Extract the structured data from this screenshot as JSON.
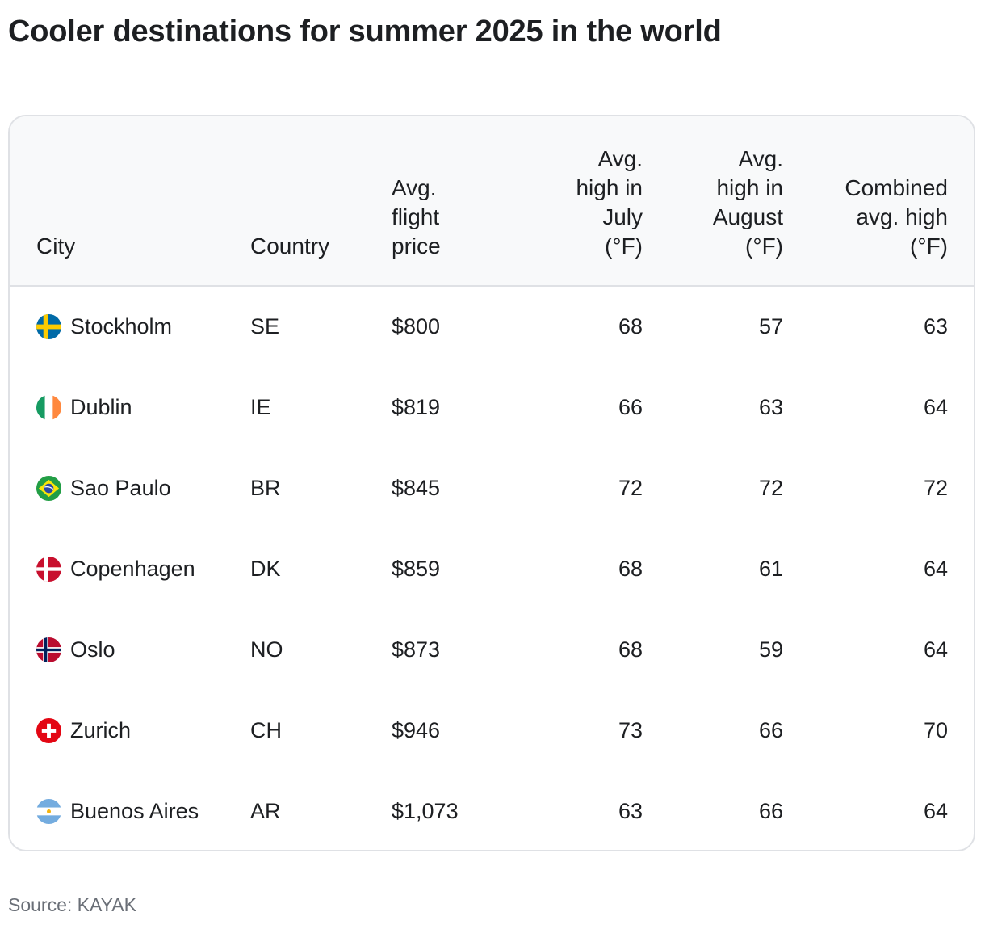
{
  "title": "Cooler destinations for summer 2025 in the world",
  "table": {
    "headers": {
      "city": "City",
      "country": "Country",
      "price_line1": "Avg.",
      "price_line2": "flight",
      "price_line3": "price",
      "july_line1": "Avg.",
      "july_line2": "high in",
      "july_line3": "July",
      "july_line4": "(°F)",
      "aug_line1": "Avg.",
      "aug_line2": "high in",
      "aug_line3": "August",
      "aug_line4": "(°F)",
      "comb_line1": "Combined",
      "comb_line2": "avg. high",
      "comb_line3": "(°F)"
    },
    "rows": [
      {
        "city": "Stockholm",
        "country": "SE",
        "price": "$800",
        "july": "68",
        "august": "57",
        "combined": "63",
        "flag_icon": "sweden-flag-icon"
      },
      {
        "city": "Dublin",
        "country": "IE",
        "price": "$819",
        "july": "66",
        "august": "63",
        "combined": "64",
        "flag_icon": "ireland-flag-icon"
      },
      {
        "city": "Sao Paulo",
        "country": "BR",
        "price": "$845",
        "july": "72",
        "august": "72",
        "combined": "72",
        "flag_icon": "brazil-flag-icon"
      },
      {
        "city": "Copenhagen",
        "country": "DK",
        "price": "$859",
        "july": "68",
        "august": "61",
        "combined": "64",
        "flag_icon": "denmark-flag-icon"
      },
      {
        "city": "Oslo",
        "country": "NO",
        "price": "$873",
        "july": "68",
        "august": "59",
        "combined": "64",
        "flag_icon": "norway-flag-icon"
      },
      {
        "city": "Zurich",
        "country": "CH",
        "price": "$946",
        "july": "73",
        "august": "66",
        "combined": "70",
        "flag_icon": "switzerland-flag-icon"
      },
      {
        "city": "Buenos Aires",
        "country": "AR",
        "price": "$1,073",
        "july": "63",
        "august": "66",
        "combined": "64",
        "flag_icon": "argentina-flag-icon"
      }
    ]
  },
  "source": "Source: KAYAK",
  "colors": {
    "text": "#1d1f22",
    "header_bg": "#f8f9fa",
    "border": "#dfe1e5",
    "source_text": "#6a6f77"
  }
}
